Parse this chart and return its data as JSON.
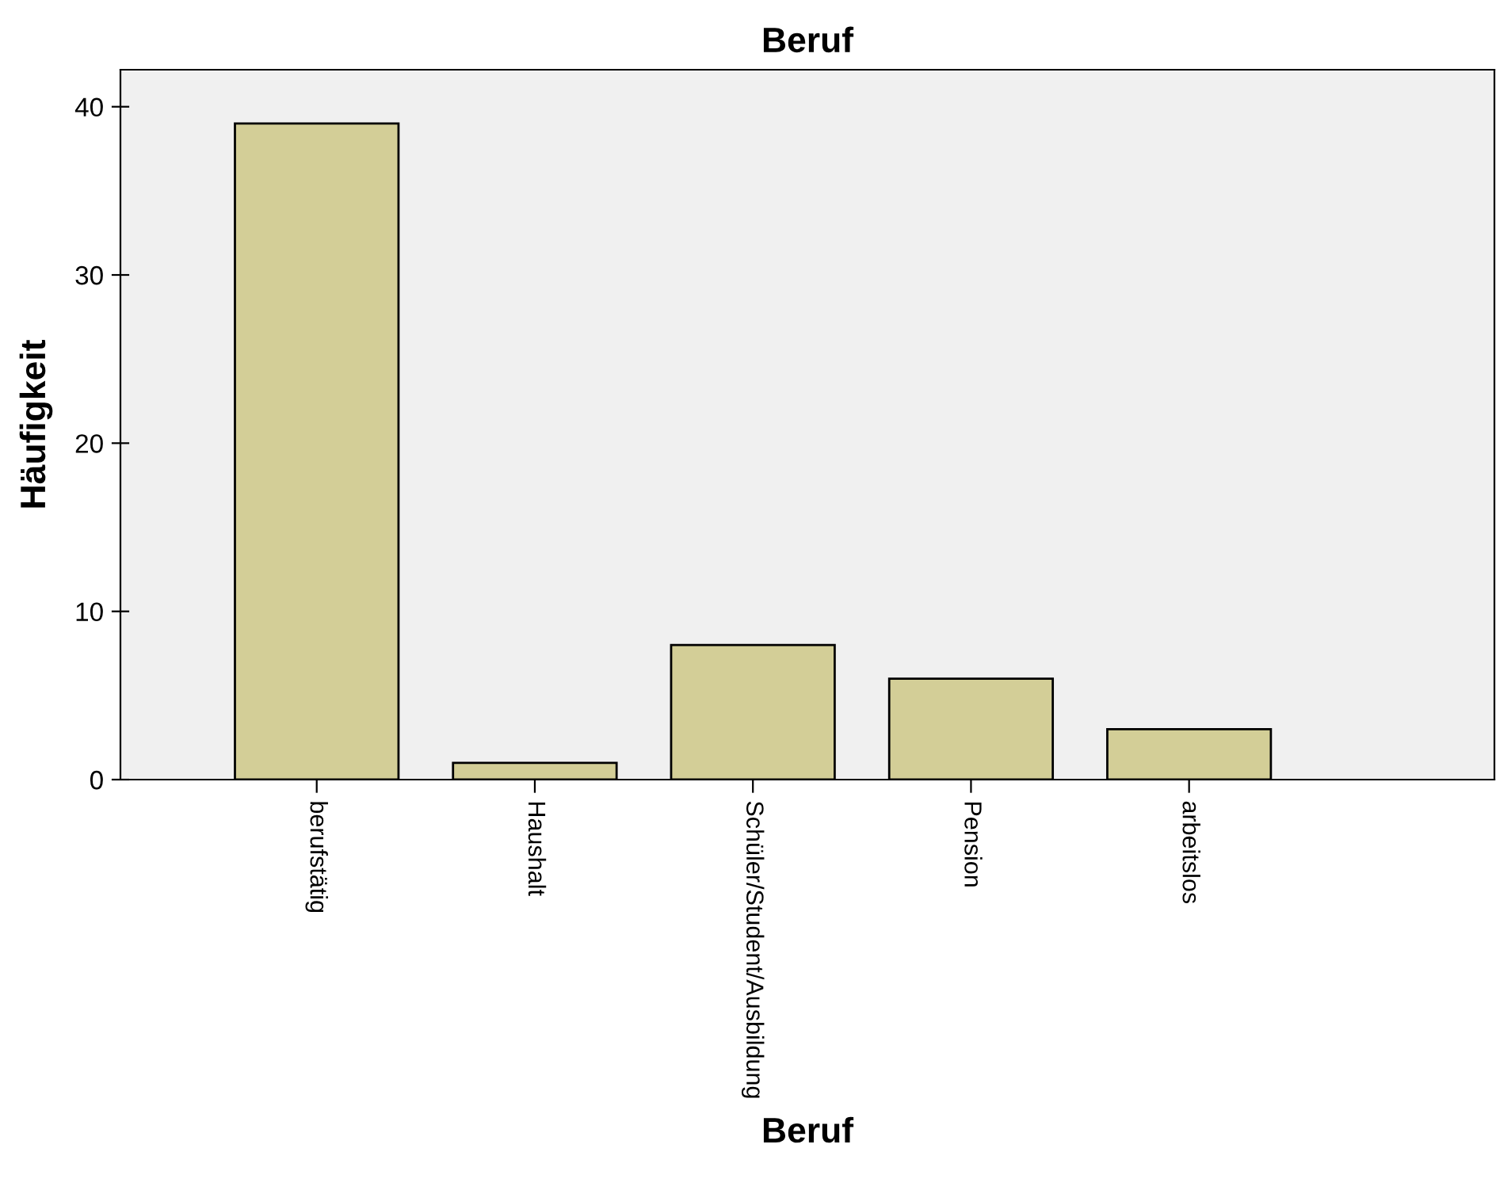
{
  "chart_data": {
    "type": "bar",
    "title": "Beruf",
    "xlabel": "Beruf",
    "ylabel": "Häufigkeit",
    "categories": [
      "berufstätig",
      "Haushalt",
      "Schüler/Student/Ausbildung",
      "Pension",
      "arbeitslos"
    ],
    "values": [
      39,
      1,
      8,
      6,
      3
    ],
    "color": "#d3ce97",
    "ylim": [
      0,
      42.2
    ],
    "yticks": [
      0,
      10,
      20,
      30,
      40
    ],
    "grid": false,
    "legend": false
  }
}
